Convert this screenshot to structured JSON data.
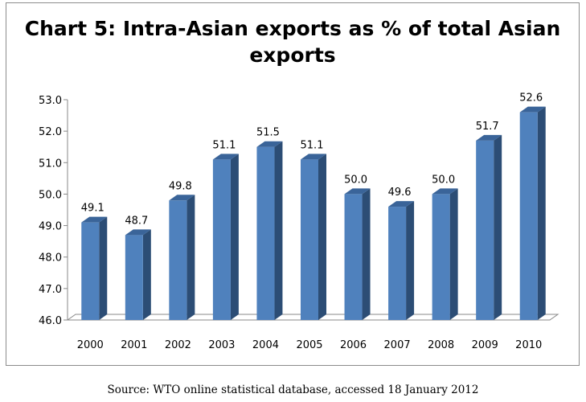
{
  "chart_data": {
    "type": "bar",
    "title": "Chart 5: Intra-Asian exports as  % of total Asian exports",
    "categories": [
      "2000",
      "2001",
      "2002",
      "2003",
      "2004",
      "2005",
      "2006",
      "2007",
      "2008",
      "2009",
      "2010"
    ],
    "values": [
      49.1,
      48.7,
      49.8,
      51.1,
      51.5,
      51.1,
      50.0,
      49.6,
      50.0,
      51.7,
      52.6
    ],
    "data_labels": [
      "49.1",
      "48.7",
      "49.8",
      "51.1",
      "51.5",
      "51.1",
      "50.0",
      "49.6",
      "50.0",
      "51.7",
      "52.6"
    ],
    "xlabel": "",
    "ylabel": "",
    "ylim": [
      46.0,
      53.0
    ],
    "y_ticks": [
      "46.0",
      "47.0",
      "48.0",
      "49.0",
      "50.0",
      "51.0",
      "52.0",
      "53.0"
    ],
    "style": "3d-column",
    "grid": false,
    "legend": "none",
    "colors": {
      "bar_front": "#4f81bd",
      "bar_side": "#2c4d75",
      "bar_top": "#3a6499",
      "floor": "#ffffff",
      "axis": "#888888"
    }
  },
  "source": "Source: WTO online statistical database, accessed 18 January 2012"
}
